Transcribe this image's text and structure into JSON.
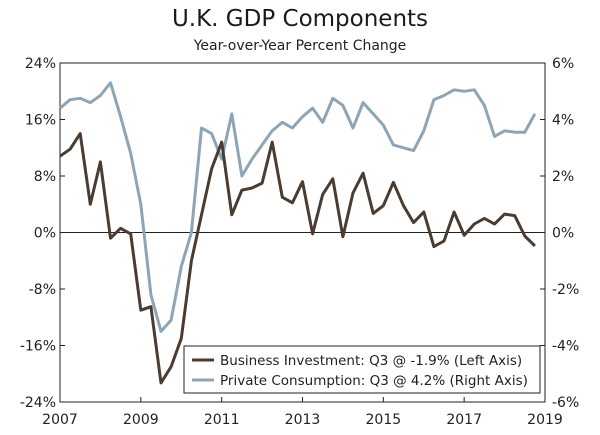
{
  "chart_data": {
    "type": "line",
    "title": "U.K. GDP Components",
    "subtitle": "Year-over-Year Percent Change",
    "x_ticks": [
      "2007",
      "2009",
      "2011",
      "2013",
      "2015",
      "2017",
      "2019"
    ],
    "xlim": [
      2007,
      2019
    ],
    "left_axis": {
      "ylim": [
        -24,
        24
      ],
      "ticks": [
        24,
        16,
        8,
        0,
        -8,
        -16,
        -24
      ],
      "tick_labels": [
        "24%",
        "16%",
        "8%",
        "0%",
        "-8%",
        "-16%",
        "-24%"
      ]
    },
    "right_axis": {
      "ylim": [
        -6,
        6
      ],
      "ticks": [
        6,
        4,
        2,
        0,
        -2,
        -4,
        -6
      ],
      "tick_labels": [
        "6%",
        "4%",
        "2%",
        "0%",
        "-2%",
        "-4%",
        "-6%"
      ]
    },
    "x": [
      2007.0,
      2007.25,
      2007.5,
      2007.75,
      2008.0,
      2008.25,
      2008.5,
      2008.75,
      2009.0,
      2009.25,
      2009.5,
      2009.75,
      2010.0,
      2010.25,
      2010.5,
      2010.75,
      2011.0,
      2011.25,
      2011.5,
      2011.75,
      2012.0,
      2012.25,
      2012.5,
      2012.75,
      2013.0,
      2013.25,
      2013.5,
      2013.75,
      2014.0,
      2014.25,
      2014.5,
      2014.75,
      2015.0,
      2015.25,
      2015.5,
      2015.75,
      2016.0,
      2016.25,
      2016.5,
      2016.75,
      2017.0,
      2017.25,
      2017.5,
      2017.75,
      2018.0,
      2018.25,
      2018.5,
      2018.75
    ],
    "series": [
      {
        "name": "Business Investment",
        "axis": "left",
        "color": "#4a3c31",
        "values": [
          10.8,
          11.8,
          14.0,
          4.0,
          10.0,
          -0.8,
          0.6,
          -0.2,
          -11.0,
          -10.5,
          -21.3,
          -19.0,
          -15.0,
          -4.0,
          2.5,
          9.0,
          12.8,
          2.5,
          6.0,
          6.3,
          7.0,
          12.8,
          5.0,
          4.2,
          7.2,
          -0.2,
          5.4,
          7.6,
          -0.6,
          5.6,
          8.4,
          2.7,
          3.8,
          7.1,
          3.8,
          1.4,
          2.9,
          -2.0,
          -1.2,
          2.9,
          -0.4,
          1.2,
          2.0,
          1.2,
          2.6,
          2.4,
          -0.5,
          -1.9
        ]
      },
      {
        "name": "Private Consumption",
        "axis": "right",
        "color": "#8ea5b5",
        "values": [
          4.4,
          4.7,
          4.75,
          4.6,
          4.85,
          5.3,
          4.1,
          2.8,
          1.0,
          -2.2,
          -3.5,
          -3.1,
          -1.2,
          0.0,
          3.7,
          3.5,
          2.6,
          4.2,
          2.0,
          2.6,
          3.1,
          3.6,
          3.9,
          3.7,
          4.1,
          4.4,
          3.9,
          4.75,
          4.5,
          3.7,
          4.6,
          4.2,
          3.8,
          3.1,
          3.0,
          2.9,
          3.6,
          4.7,
          4.85,
          5.05,
          5.0,
          5.05,
          4.5,
          3.4,
          3.6,
          3.55,
          3.55,
          4.2
        ]
      }
    ],
    "legend": {
      "position": "bottom-right",
      "entries": [
        "Business Investment: Q3 @ -1.9% (Left Axis)",
        "Private Consumption: Q3 @ 4.2% (Right Axis)"
      ]
    }
  }
}
